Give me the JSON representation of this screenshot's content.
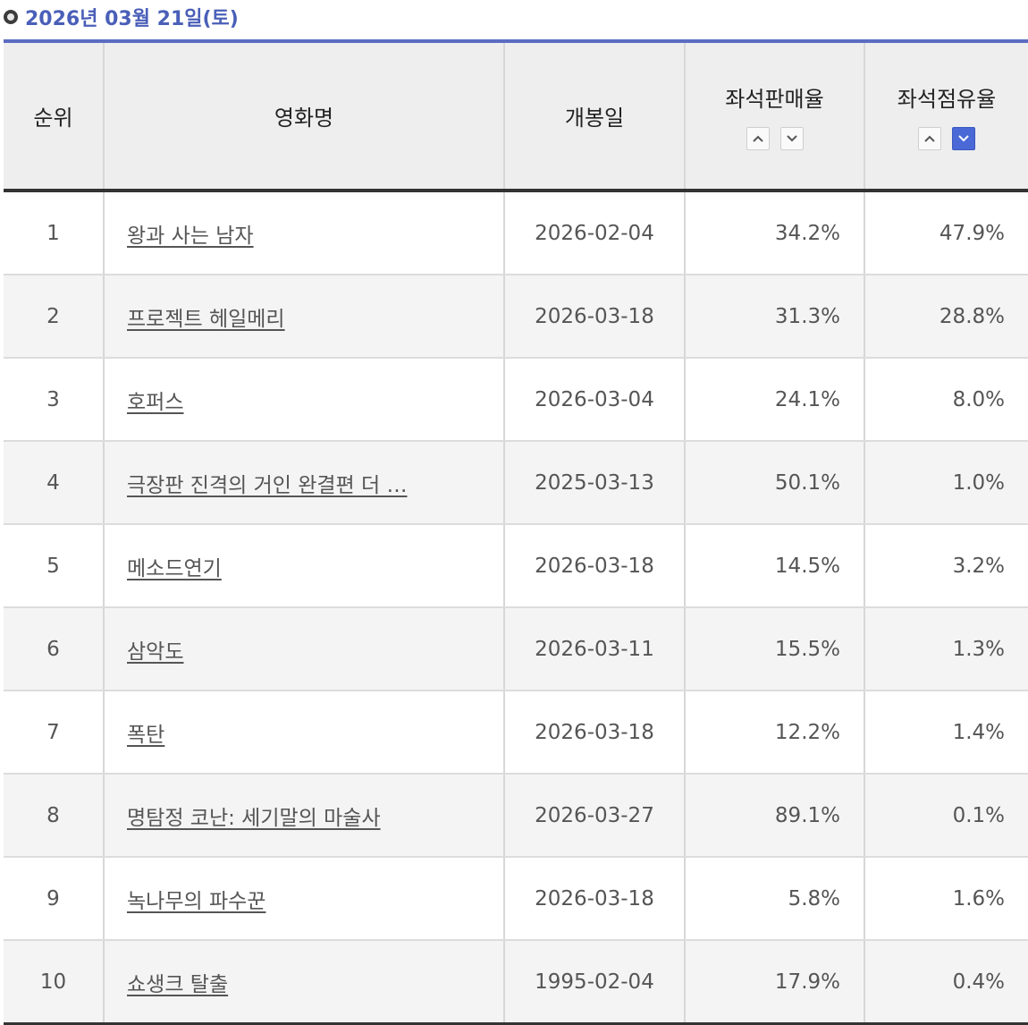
{
  "header": {
    "date": "2026년 03월 21일(토)"
  },
  "columns": {
    "rank": "순위",
    "title": "영화명",
    "release": "개봉일",
    "sales_rate": "좌석판매율",
    "occupancy_rate": "좌석점유율"
  },
  "sort": {
    "active": "occupancy_rate-desc"
  },
  "rows": [
    {
      "rank": "1",
      "title": "왕과 사는 남자",
      "release": "2026-02-04",
      "sales_rate": "34.2%",
      "occupancy_rate": "47.9%"
    },
    {
      "rank": "2",
      "title": "프로젝트 헤일메리",
      "release": "2026-03-18",
      "sales_rate": "31.3%",
      "occupancy_rate": "28.8%"
    },
    {
      "rank": "3",
      "title": "호퍼스",
      "release": "2026-03-04",
      "sales_rate": "24.1%",
      "occupancy_rate": "8.0%"
    },
    {
      "rank": "4",
      "title": "극장판 진격의 거인 완결편 더 …",
      "release": "2025-03-13",
      "sales_rate": "50.1%",
      "occupancy_rate": "1.0%"
    },
    {
      "rank": "5",
      "title": "메소드연기",
      "release": "2026-03-18",
      "sales_rate": "14.5%",
      "occupancy_rate": "3.2%"
    },
    {
      "rank": "6",
      "title": "삼악도",
      "release": "2026-03-11",
      "sales_rate": "15.5%",
      "occupancy_rate": "1.3%"
    },
    {
      "rank": "7",
      "title": "폭탄",
      "release": "2026-03-18",
      "sales_rate": "12.2%",
      "occupancy_rate": "1.4%"
    },
    {
      "rank": "8",
      "title": "명탐정 코난: 세기말의 마술사",
      "release": "2026-03-27",
      "sales_rate": "89.1%",
      "occupancy_rate": "0.1%"
    },
    {
      "rank": "9",
      "title": "녹나무의 파수꾼",
      "release": "2026-03-18",
      "sales_rate": "5.8%",
      "occupancy_rate": "1.6%"
    },
    {
      "rank": "10",
      "title": "쇼생크 탈출",
      "release": "1995-02-04",
      "sales_rate": "17.9%",
      "occupancy_rate": "0.4%"
    }
  ],
  "colors": {
    "accent": "#4a5fb8",
    "active_sort": "#4a69d6"
  }
}
